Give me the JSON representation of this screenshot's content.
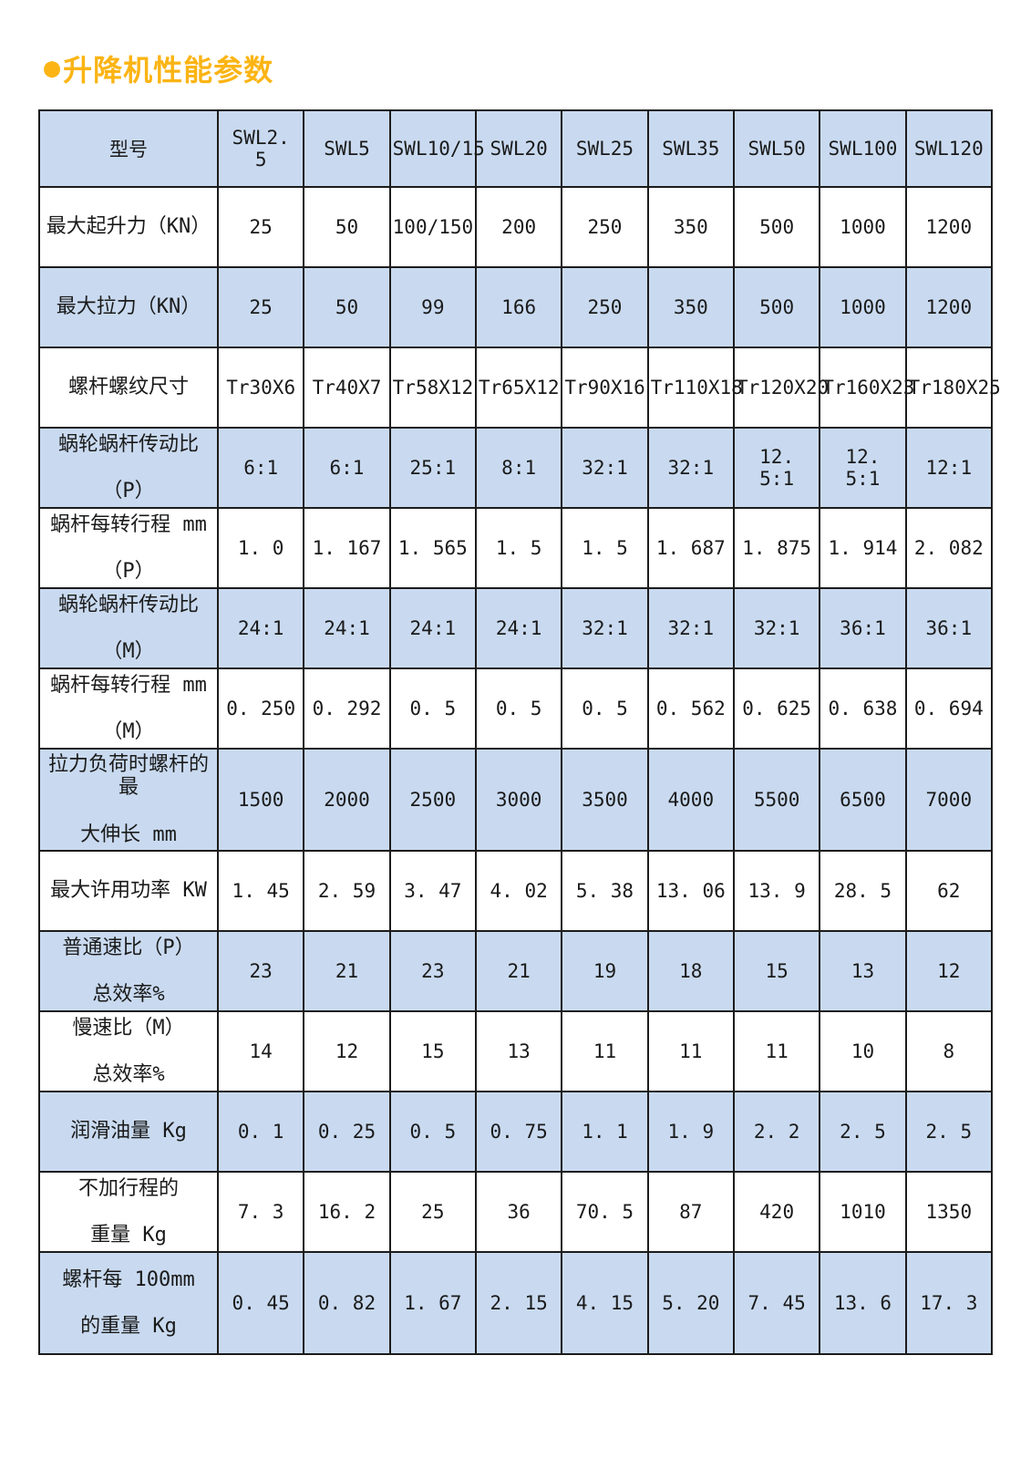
{
  "page_title": {
    "bullet": "●",
    "text": "升降机性能参数"
  },
  "colors": {
    "title": "#FBB414",
    "header_bg": "#C9DAF0",
    "row_alt_bg": "#C9DAF0",
    "row_bg": "#FFFFFF",
    "border": "#1C1C1C",
    "text": "#1A1A1A"
  },
  "table": {
    "header": {
      "label": "型号",
      "models": [
        "SWL2. 5",
        "SWL5",
        "SWL10/15",
        "SWL20",
        "SWL25",
        "SWL35",
        "SWL50",
        "SWL100",
        "SWL120"
      ]
    },
    "rows": [
      {
        "label_lines": [
          "最大起升力（KN）"
        ],
        "shaded": false,
        "values": [
          "25",
          "50",
          "100/150",
          "200",
          "250",
          "350",
          "500",
          "1000",
          "1200"
        ]
      },
      {
        "label_lines": [
          "最大拉力（KN）"
        ],
        "shaded": true,
        "values": [
          "25",
          "50",
          "99",
          "166",
          "250",
          "350",
          "500",
          "1000",
          "1200"
        ]
      },
      {
        "label_lines": [
          "螺杆螺纹尺寸"
        ],
        "shaded": false,
        "values": [
          "Tr30X6",
          "Tr40X7",
          "Tr58X12",
          "Tr65X12",
          "Tr90X16",
          "Tr110X18",
          "Tr120X20",
          "Tr160X23",
          "Tr180X25"
        ]
      },
      {
        "label_lines": [
          "蜗轮蜗杆传动比",
          "（P）"
        ],
        "shaded": true,
        "values": [
          "6:1",
          "6:1",
          "25:1",
          "8:1",
          "32:1",
          "32:1",
          "12. 5:1",
          "12. 5:1",
          "12:1"
        ]
      },
      {
        "label_lines": [
          "蜗杆每转行程 mm",
          "（P）"
        ],
        "shaded": false,
        "values": [
          "1. 0",
          "1. 167",
          "1. 565",
          "1. 5",
          "1. 5",
          "1. 687",
          "1. 875",
          "1. 914",
          "2. 082"
        ]
      },
      {
        "label_lines": [
          "蜗轮蜗杆传动比",
          "（M）"
        ],
        "shaded": true,
        "values": [
          "24:1",
          "24:1",
          "24:1",
          "24:1",
          "32:1",
          "32:1",
          "32:1",
          "36:1",
          "36:1"
        ]
      },
      {
        "label_lines": [
          "蜗杆每转行程 mm",
          "（M）"
        ],
        "shaded": false,
        "values": [
          "0. 250",
          "0. 292",
          "0. 5",
          "0. 5",
          "0. 5",
          "0. 562",
          "0. 625",
          "0. 638",
          "0. 694"
        ]
      },
      {
        "label_lines": [
          "拉力负荷时螺杆的最",
          "大伸长 mm"
        ],
        "shaded": true,
        "values": [
          "1500",
          "2000",
          "2500",
          "3000",
          "3500",
          "4000",
          "5500",
          "6500",
          "7000"
        ]
      },
      {
        "label_lines": [
          "最大许用功率 KW"
        ],
        "shaded": false,
        "values": [
          "1. 45",
          "2. 59",
          "3. 47",
          "4. 02",
          "5. 38",
          "13. 06",
          "13. 9",
          "28. 5",
          "62"
        ]
      },
      {
        "label_lines": [
          "普通速比（P）",
          "总效率%"
        ],
        "shaded": true,
        "values": [
          "23",
          "21",
          "23",
          "21",
          "19",
          "18",
          "15",
          "13",
          "12"
        ]
      },
      {
        "label_lines": [
          "慢速比（M）",
          "总效率%"
        ],
        "shaded": false,
        "values": [
          "14",
          "12",
          "15",
          "13",
          "11",
          "11",
          "11",
          "10",
          "8"
        ]
      },
      {
        "label_lines": [
          "润滑油量 Kg"
        ],
        "shaded": true,
        "values": [
          "0. 1",
          "0. 25",
          "0. 5",
          "0. 75",
          "1. 1",
          "1. 9",
          "2. 2",
          "2. 5",
          "2. 5"
        ]
      },
      {
        "label_lines": [
          "不加行程的",
          "重量 Kg"
        ],
        "shaded": false,
        "values": [
          "7. 3",
          "16. 2",
          "25",
          "36",
          "70. 5",
          "87",
          "420",
          "1010",
          "1350"
        ]
      },
      {
        "label_lines": [
          "螺杆每 100mm",
          "的重量 Kg"
        ],
        "shaded": true,
        "values": [
          "0. 45",
          "0. 82",
          "1. 67",
          "2. 15",
          "4. 15",
          "5. 20",
          "7. 45",
          "13. 6",
          "17. 3"
        ]
      }
    ]
  }
}
